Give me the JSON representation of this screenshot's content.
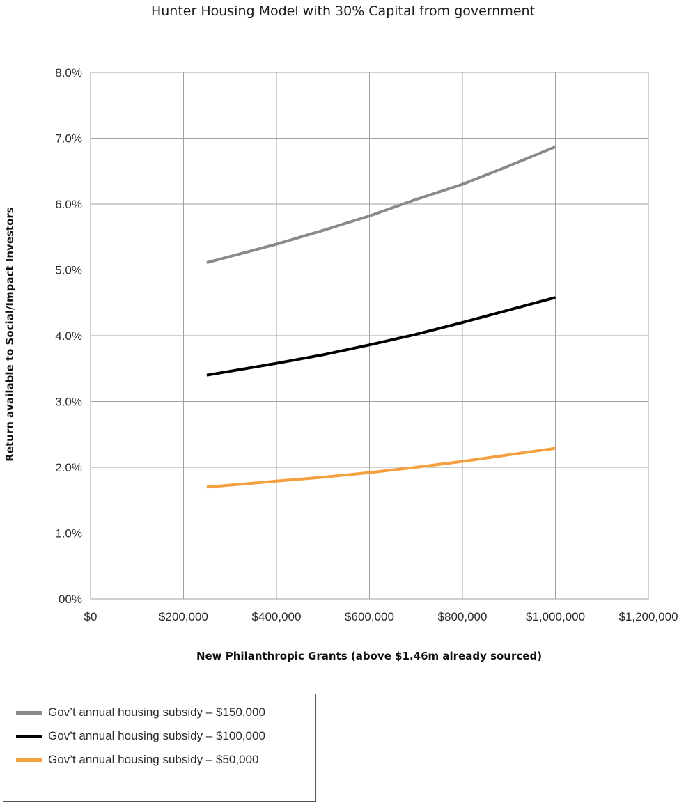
{
  "chart_data": {
    "type": "line",
    "title": "Hunter Housing Model with 30% Capital from government",
    "xlabel": "New Philanthropic Grants (above $1.46m already sourced)",
    "ylabel": "Return available to Social/Impact Investors",
    "xlim": [
      0,
      1200000
    ],
    "ylim": [
      0,
      0.08
    ],
    "x_ticks": [
      0,
      200000,
      400000,
      600000,
      800000,
      1000000,
      1200000
    ],
    "x_tick_labels": [
      "$0",
      "$200,000",
      "$400,000",
      "$600,000",
      "$800,000",
      "$1,000,000",
      "$1,200,000"
    ],
    "y_ticks": [
      0,
      0.01,
      0.02,
      0.03,
      0.04,
      0.05,
      0.06,
      0.07,
      0.08
    ],
    "y_tick_labels": [
      "00%",
      "1.0%",
      "2.0%",
      "3.0%",
      "4.0%",
      "5.0%",
      "6.0%",
      "7.0%",
      "8.0%"
    ],
    "grid": true,
    "legend_position": "bottom-left",
    "series": [
      {
        "name": "Gov’t annual housing subsidy – $150,000",
        "color": "#8a8a8a",
        "points": [
          [
            250000,
            0.0511
          ],
          [
            400000,
            0.0539
          ],
          [
            500000,
            0.056
          ],
          [
            600000,
            0.0582
          ],
          [
            700000,
            0.0607
          ],
          [
            800000,
            0.063
          ],
          [
            900000,
            0.0658
          ],
          [
            1000000,
            0.0687
          ]
        ]
      },
      {
        "name": "Gov’t annual housing subsidy – $100,000",
        "color": "#000000",
        "points": [
          [
            250000,
            0.034
          ],
          [
            400000,
            0.0358
          ],
          [
            500000,
            0.0371
          ],
          [
            600000,
            0.0386
          ],
          [
            700000,
            0.0402
          ],
          [
            800000,
            0.042
          ],
          [
            900000,
            0.0439
          ],
          [
            1000000,
            0.0458
          ]
        ]
      },
      {
        "name": "Gov’t annual housing subsidy – $50,000",
        "color": "#f5a040",
        "points": [
          [
            250000,
            0.017
          ],
          [
            400000,
            0.0179
          ],
          [
            500000,
            0.0185
          ],
          [
            600000,
            0.0192
          ],
          [
            700000,
            0.02
          ],
          [
            800000,
            0.0209
          ],
          [
            900000,
            0.0219
          ],
          [
            1000000,
            0.0229
          ]
        ]
      }
    ]
  }
}
